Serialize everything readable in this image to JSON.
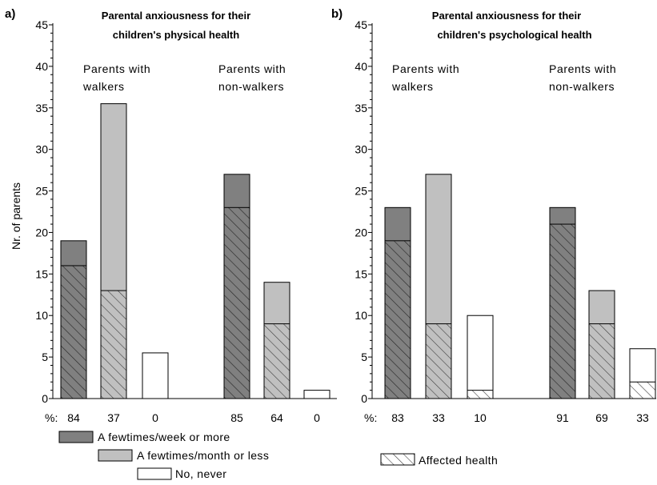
{
  "chart_data": [
    {
      "type": "bar",
      "panel_label": "a)",
      "title_lines": [
        "Parental anxiousness for their",
        "children's physical health"
      ],
      "ylabel": "Nr. of parents",
      "ylim": [
        0,
        45
      ],
      "yticks": [
        0,
        5,
        10,
        15,
        20,
        25,
        30,
        35,
        40,
        45
      ],
      "group_labels": [
        [
          "Parents with",
          "walkers"
        ],
        [
          "Parents with",
          "non-walkers"
        ]
      ],
      "percent_prefix": "%:",
      "percent_labels": [
        "84",
        "37",
        "0",
        "85",
        "64",
        "0"
      ],
      "bars": [
        {
          "group": 0,
          "category": "A few times/week or more",
          "total": 19,
          "affected": 16
        },
        {
          "group": 0,
          "category": "A few times/month or less",
          "total": 35.5,
          "affected": 13
        },
        {
          "group": 0,
          "category": "No, never",
          "total": 5.5,
          "affected": 0
        },
        {
          "group": 1,
          "category": "A few times/week or more",
          "total": 27,
          "affected": 23
        },
        {
          "group": 1,
          "category": "A few times/month or less",
          "total": 14,
          "affected": 9
        },
        {
          "group": 1,
          "category": "No, never",
          "total": 1,
          "affected": 0
        }
      ]
    },
    {
      "type": "bar",
      "panel_label": "b)",
      "title_lines": [
        "Parental anxiousness for their",
        "children's psychological health"
      ],
      "ylabel": "",
      "ylim": [
        0,
        45
      ],
      "yticks": [
        0,
        5,
        10,
        15,
        20,
        25,
        30,
        35,
        40,
        45
      ],
      "group_labels": [
        [
          "Parents with",
          "walkers"
        ],
        [
          "Parents with",
          "non-walkers"
        ]
      ],
      "percent_prefix": "%:",
      "percent_labels": [
        "83",
        "33",
        "10",
        "91",
        "69",
        "33"
      ],
      "bars": [
        {
          "group": 0,
          "category": "A few times/week or more",
          "total": 23,
          "affected": 19
        },
        {
          "group": 0,
          "category": "A few times/month or less",
          "total": 27,
          "affected": 9
        },
        {
          "group": 0,
          "category": "No, never",
          "total": 10,
          "affected": 1
        },
        {
          "group": 1,
          "category": "A few times/week or more",
          "total": 23,
          "affected": 21
        },
        {
          "group": 1,
          "category": "A few times/month or less",
          "total": 13,
          "affected": 9
        },
        {
          "group": 1,
          "category": "No, never",
          "total": 6,
          "affected": 2
        }
      ]
    }
  ],
  "legend": {
    "items": [
      {
        "label": "A fewtimes/week or more",
        "fill": "#808080"
      },
      {
        "label": "A fewtimes/month or less",
        "fill": "#c0c0c0"
      },
      {
        "label": "No, never",
        "fill": "#ffffff"
      }
    ],
    "affected_label": "Affected health"
  },
  "colors": {
    "week": "#808080",
    "month": "#c0c0c0",
    "never": "#ffffff",
    "hatch_on_week": "#2a2a2a",
    "hatch_on_light": "#404040"
  }
}
